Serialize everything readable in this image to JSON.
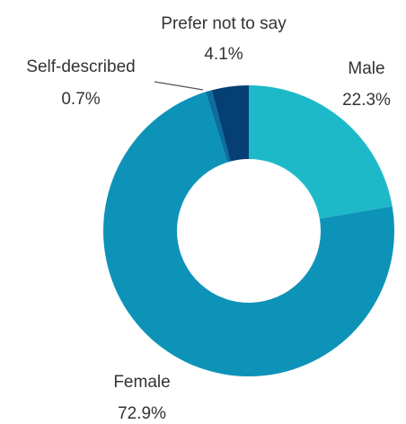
{
  "chart_data": {
    "type": "pie",
    "variant": "donut",
    "title": "",
    "categories": [
      "Male",
      "Female",
      "Self-described",
      "Prefer not to say"
    ],
    "values": [
      22.3,
      72.9,
      0.7,
      4.1
    ],
    "value_labels": [
      "22.3%",
      "72.9%",
      "0.7%",
      "4.1%"
    ],
    "colors": [
      "#1DB9C8",
      "#0E93B8",
      "#0A6EA0",
      "#053F73"
    ],
    "legend": "none",
    "label_placement": "outside"
  }
}
